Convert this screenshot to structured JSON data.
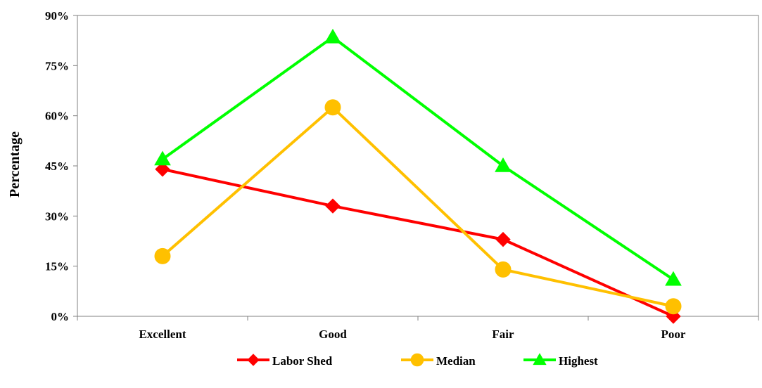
{
  "chart_data": {
    "type": "line",
    "title": "",
    "xlabel": "",
    "ylabel": "Percentage",
    "categories": [
      "Excellent",
      "Good",
      "Fair",
      "Poor"
    ],
    "ylim": [
      0,
      90
    ],
    "yticks": [
      0,
      15,
      30,
      45,
      60,
      75,
      90
    ],
    "ytick_labels": [
      "0%",
      "15%",
      "30%",
      "45%",
      "60%",
      "75%",
      "90%"
    ],
    "grid": false,
    "legend_position": "bottom",
    "series": [
      {
        "name": "Labor Shed",
        "values": [
          44,
          33,
          23,
          0
        ],
        "color": "#ff0000",
        "marker": "diamond"
      },
      {
        "name": "Median",
        "values": [
          18,
          62.5,
          14,
          3
        ],
        "color": "#ffc000",
        "marker": "circle"
      },
      {
        "name": "Highest",
        "values": [
          47,
          83.5,
          45,
          11
        ],
        "color": "#00ff00",
        "marker": "triangle"
      }
    ]
  }
}
